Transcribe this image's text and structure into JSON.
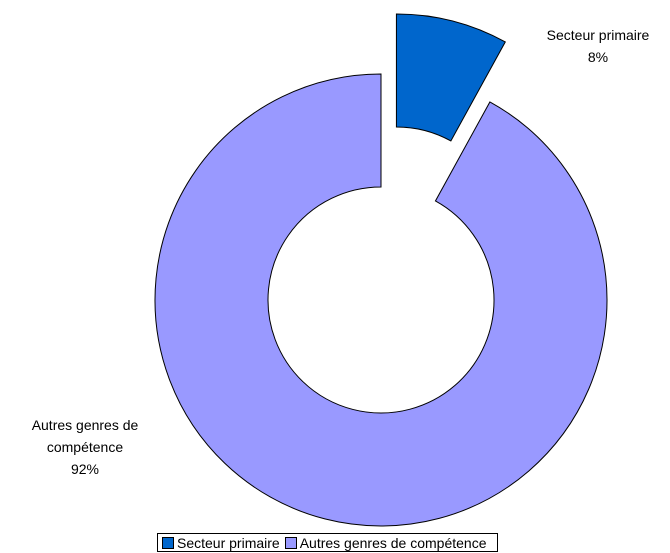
{
  "chart_data": {
    "type": "donut",
    "categories": [
      "Secteur primaire",
      "Autres genres de compétence"
    ],
    "values": [
      8,
      92
    ],
    "value_labels": [
      "8%",
      "92%"
    ],
    "colors": [
      "#0066cc",
      "#9999ff"
    ],
    "legend": "bottom"
  }
}
